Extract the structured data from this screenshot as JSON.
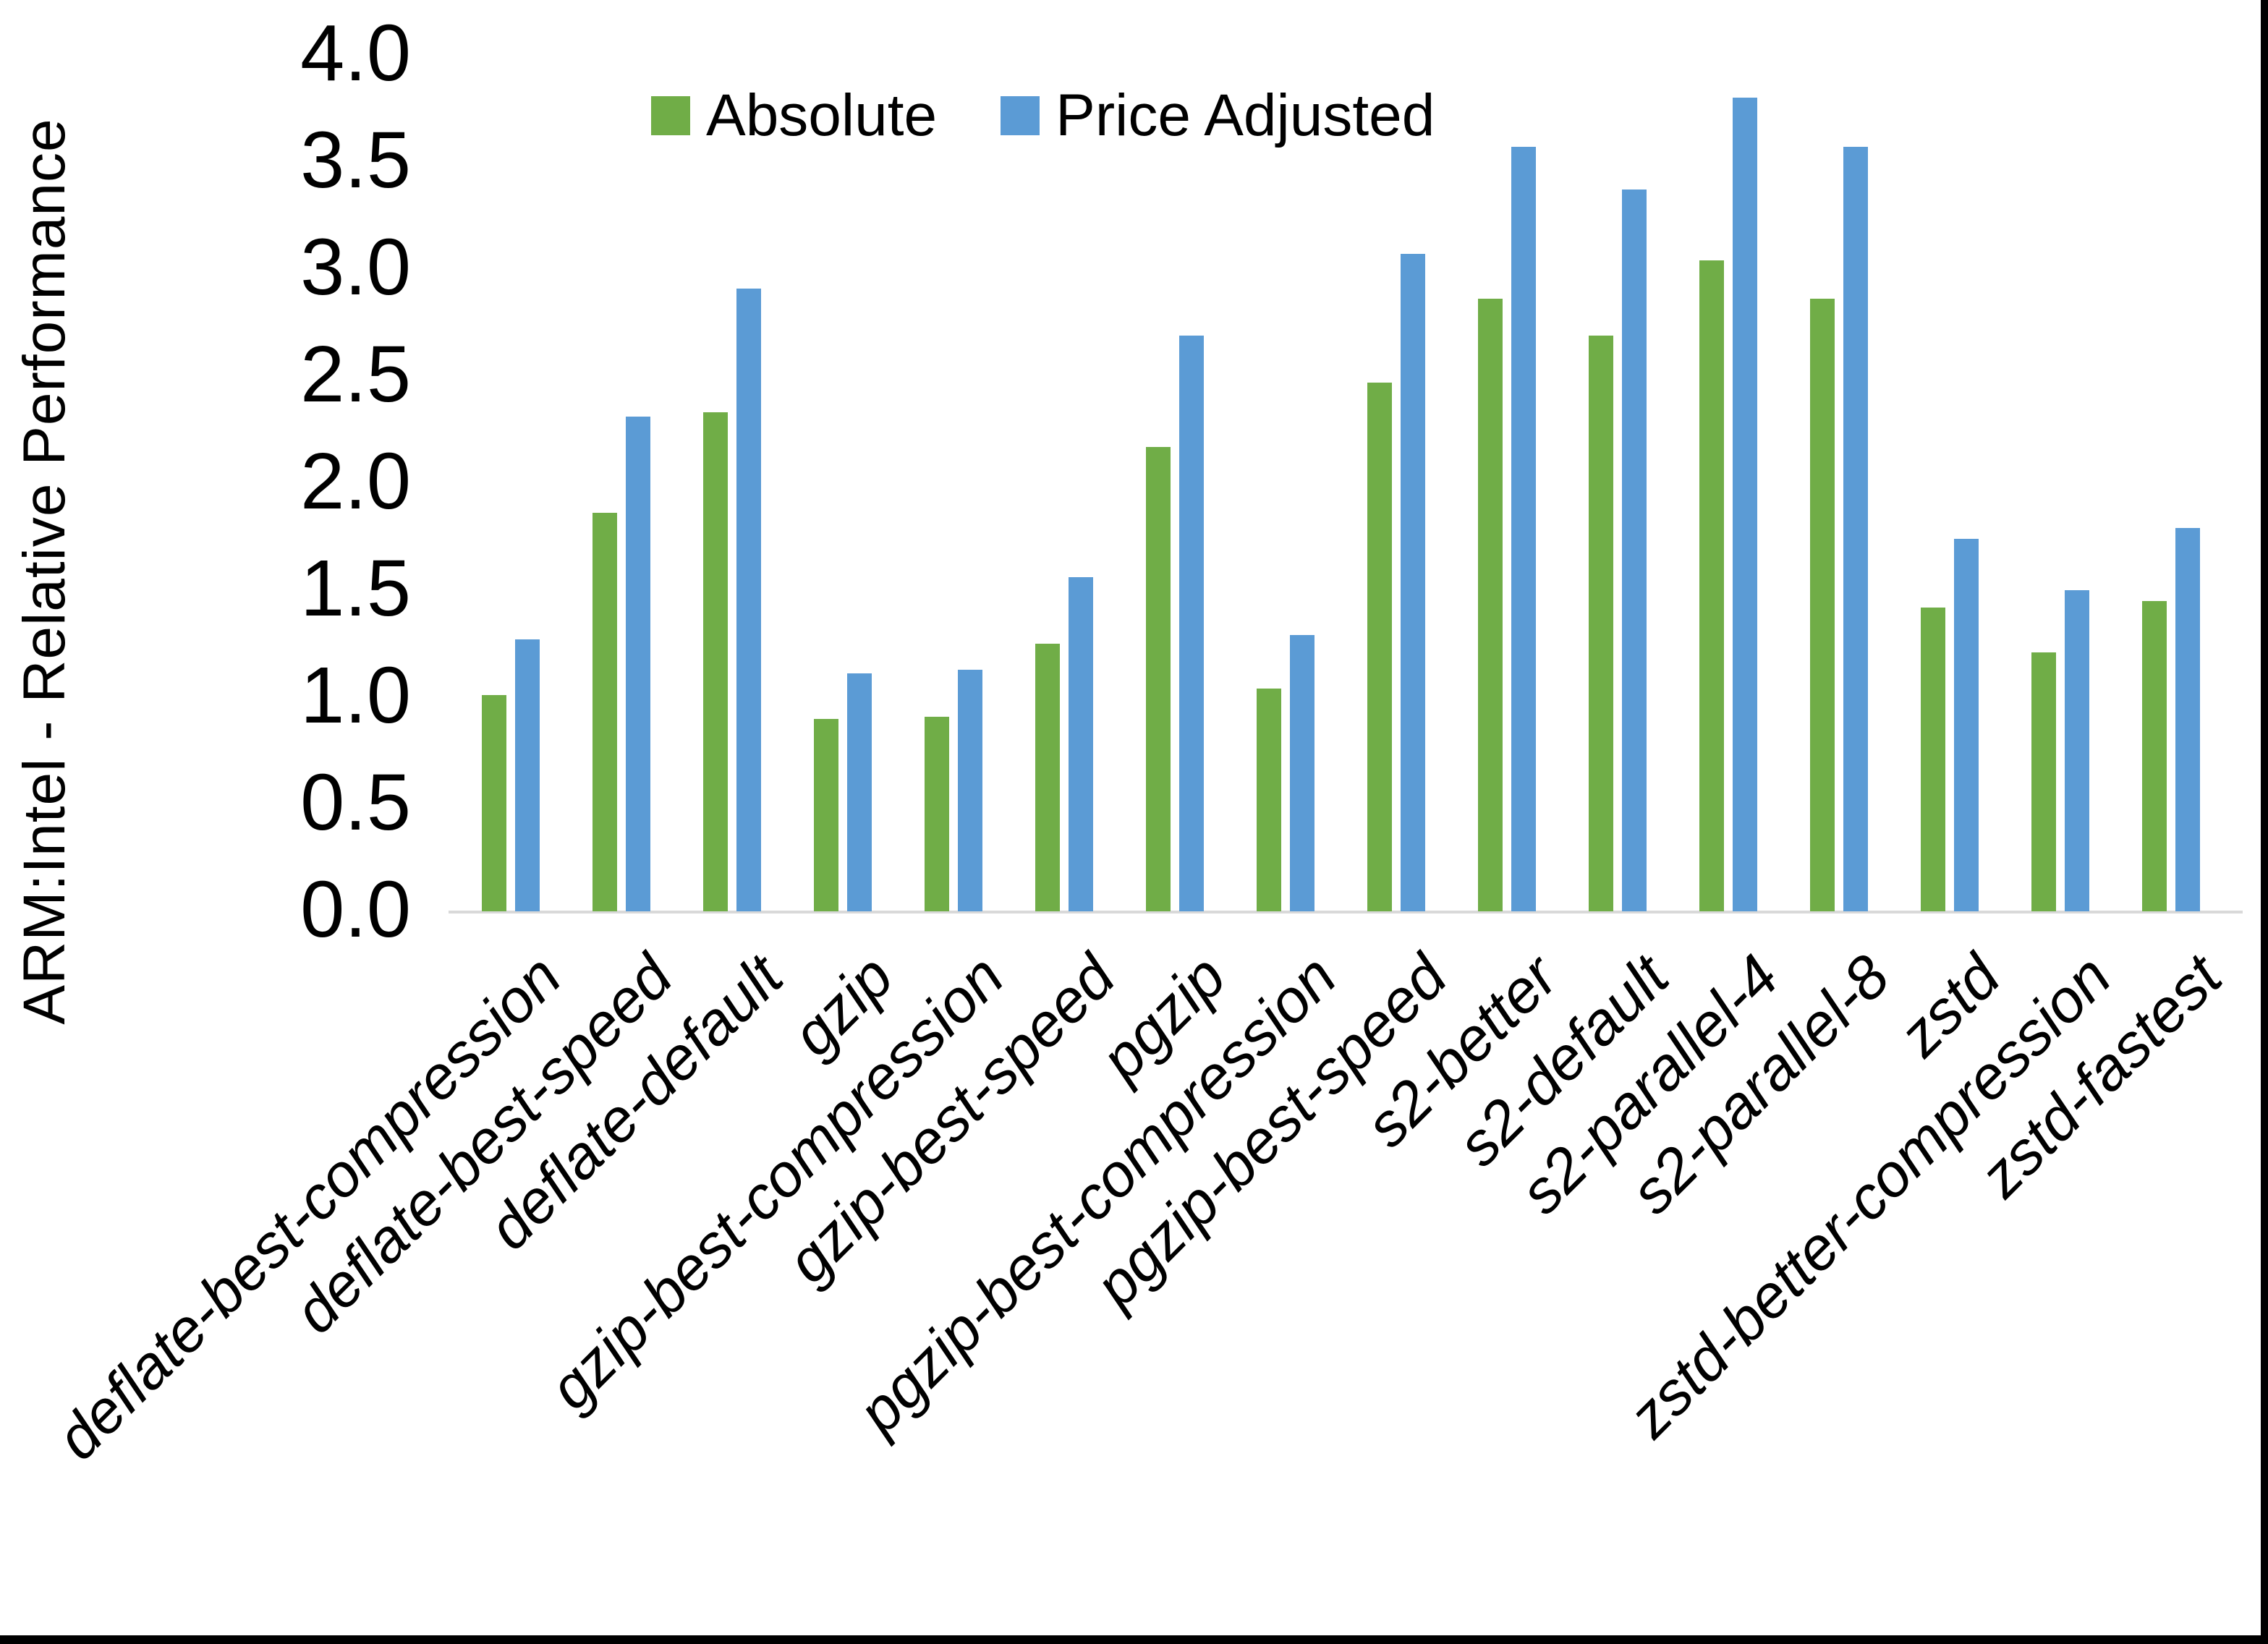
{
  "figure": {
    "y_axis_title": "ARM:Intel - Relative Performance",
    "y_tick_labels": [
      "4.0",
      "3.5",
      "3.0",
      "2.5",
      "2.0",
      "1.5",
      "1.0",
      "0.5",
      "0.0"
    ]
  },
  "colors": {
    "absolute_green": "#70AD47",
    "price_adjusted_blue": "#5B9BD5",
    "axis_line_gray": "#D9D9D9",
    "text_black": "#000000",
    "border_black": "#000000"
  },
  "chart_data": {
    "type": "bar",
    "title": "",
    "xlabel": "",
    "ylabel": "ARM:Intel - Relative Performance",
    "ylim": [
      0.0,
      4.0
    ],
    "ytick_step": 0.5,
    "grid": false,
    "legend_position": "top-center",
    "categories": [
      "deflate-best-compression",
      "deflate-best-speed",
      "deflate-default",
      "gzip",
      "gzip-best-compression",
      "gzip-best-speed",
      "pgzip",
      "pgzip-best-compression",
      "pgzip-best-speed",
      "s2-better",
      "s2-default",
      "s2-parallel-4",
      "s2-parallel-8",
      "zstd",
      "zstd-better-compression",
      "zstd-fastest"
    ],
    "series": [
      {
        "name": "Absolute",
        "color": "#70AD47",
        "values": [
          1.01,
          1.86,
          2.33,
          0.9,
          0.91,
          1.25,
          2.17,
          1.04,
          2.47,
          2.86,
          2.69,
          3.04,
          2.86,
          1.42,
          1.21,
          1.45
        ]
      },
      {
        "name": "Price Adjusted",
        "color": "#5B9BD5",
        "values": [
          1.27,
          2.31,
          2.91,
          1.11,
          1.13,
          1.56,
          2.69,
          1.29,
          3.07,
          3.57,
          3.37,
          3.8,
          3.57,
          1.74,
          1.5,
          1.79
        ]
      }
    ]
  }
}
